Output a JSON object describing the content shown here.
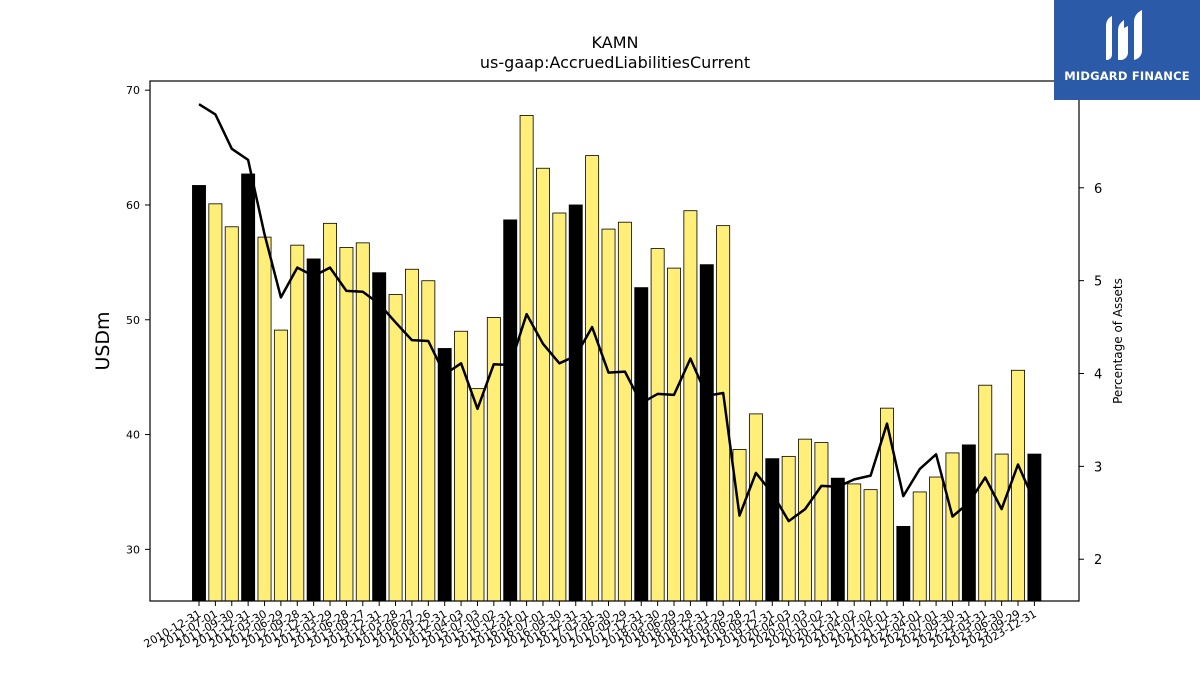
{
  "brand": {
    "name": "MIDGARD FINANCE",
    "accent": "#2b5aa8"
  },
  "chart_data": {
    "type": "bar",
    "title": "KAMN",
    "subtitle": "us-gaap:AccruedLiabilitiesCurrent",
    "ylabel": "USDm",
    "y2label": "Percentage of Assets",
    "ylim": [
      25.5,
      70.8
    ],
    "y2lim": [
      1.55,
      7.15
    ],
    "yticks": [
      30,
      40,
      50,
      60,
      70
    ],
    "y2ticks": [
      2,
      3,
      4,
      5,
      6
    ],
    "grid": false,
    "colors": {
      "annual": "#000000",
      "quarter": "#ffee77",
      "line": "#000000"
    },
    "categories": [
      "2010-12-31",
      "2011-07-01",
      "2011-09-30",
      "2011-12-31",
      "2012-03-30",
      "2012-06-29",
      "2012-09-28",
      "2012-12-31",
      "2013-03-29",
      "2013-06-28",
      "2013-09-27",
      "2013-12-31",
      "2014-03-28",
      "2014-06-27",
      "2014-09-26",
      "2014-12-31",
      "2015-04-03",
      "2015-07-03",
      "2015-10-02",
      "2015-12-31",
      "2016-04-01",
      "2016-07-01",
      "2016-09-30",
      "2016-12-31",
      "2017-03-31",
      "2017-06-30",
      "2017-09-29",
      "2017-12-31",
      "2018-03-30",
      "2018-06-29",
      "2018-09-28",
      "2018-12-31",
      "2019-03-29",
      "2019-06-28",
      "2019-09-27",
      "2019-12-31",
      "2020-04-03",
      "2020-07-03",
      "2020-10-02",
      "2020-12-31",
      "2021-04-02",
      "2021-07-02",
      "2021-10-01",
      "2021-12-31",
      "2022-04-01",
      "2022-07-01",
      "2022-09-30",
      "2022-12-31",
      "2023-03-31",
      "2023-06-30",
      "2023-09-29",
      "2023-12-31"
    ],
    "values": [
      61.7,
      60.1,
      58.1,
      62.7,
      57.2,
      49.1,
      56.5,
      55.3,
      58.4,
      56.3,
      56.7,
      54.1,
      52.2,
      54.4,
      53.4,
      47.5,
      49.0,
      44.0,
      50.2,
      58.7,
      67.8,
      63.2,
      59.3,
      60.0,
      64.3,
      57.9,
      58.5,
      52.8,
      56.2,
      54.5,
      59.5,
      54.8,
      58.2,
      38.7,
      41.8,
      37.9,
      38.1,
      39.6,
      39.3,
      36.2,
      35.7,
      35.2,
      42.3,
      32.0,
      35.0,
      36.3,
      38.4,
      39.1,
      44.3,
      38.3,
      45.6,
      38.3
    ],
    "annual": [
      true,
      false,
      false,
      true,
      false,
      false,
      false,
      true,
      false,
      false,
      false,
      true,
      false,
      false,
      false,
      true,
      false,
      false,
      false,
      true,
      false,
      false,
      false,
      true,
      false,
      false,
      false,
      true,
      false,
      false,
      false,
      true,
      false,
      false,
      false,
      true,
      false,
      false,
      false,
      true,
      false,
      false,
      false,
      true,
      false,
      false,
      false,
      true,
      false,
      false,
      false,
      true
    ],
    "pct_of_assets": [
      6.9,
      6.79,
      6.42,
      6.3,
      5.5,
      4.82,
      5.14,
      5.05,
      5.14,
      4.89,
      4.88,
      4.75,
      4.55,
      4.36,
      4.35,
      3.99,
      4.11,
      3.62,
      4.1,
      4.09,
      4.64,
      4.32,
      4.11,
      4.19,
      4.5,
      4.01,
      4.02,
      3.68,
      3.78,
      3.77,
      4.16,
      3.76,
      3.79,
      2.47,
      2.93,
      2.71,
      2.41,
      2.54,
      2.79,
      2.78,
      2.86,
      2.9,
      3.46,
      2.68,
      2.97,
      3.13,
      2.46,
      2.61,
      2.88,
      2.54,
      3.02,
      2.62
    ]
  }
}
